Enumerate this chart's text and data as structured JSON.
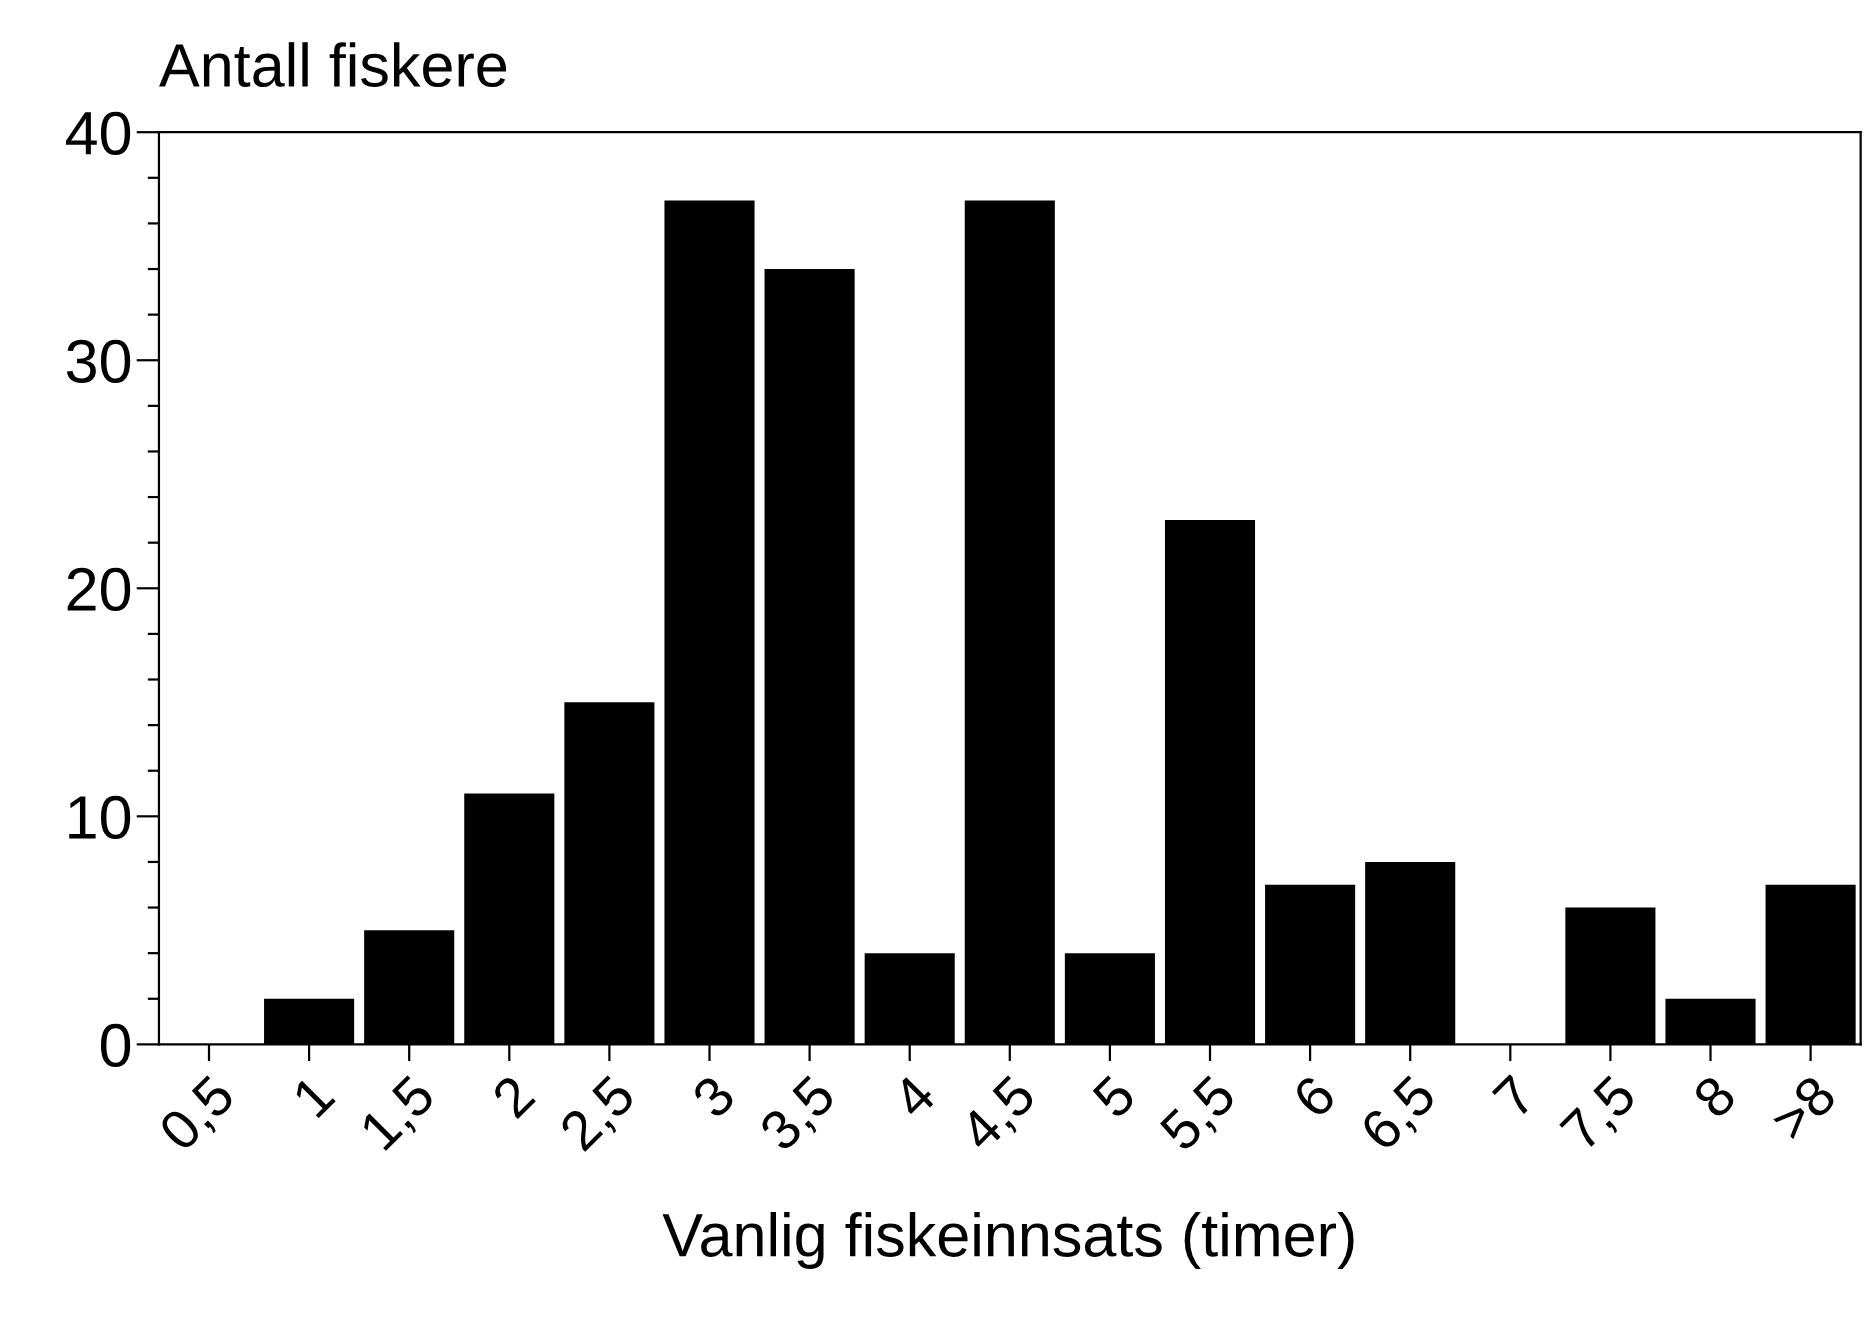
{
  "chart_data": {
    "type": "bar",
    "ylabel": "Antall fiskere",
    "xlabel": "Vanlig fiskeinnsats (timer)",
    "categories": [
      "0,5",
      "1",
      "1,5",
      "2",
      "2,5",
      "3",
      "3,5",
      "4",
      "4,5",
      "5",
      "5,5",
      "6",
      "6,5",
      "7",
      "7,5",
      "8",
      ">8"
    ],
    "values": [
      0,
      2,
      5,
      11,
      15,
      37,
      34,
      4,
      37,
      4,
      23,
      7,
      8,
      0,
      6,
      2,
      7
    ],
    "color": "#000000",
    "ylim": [
      0,
      40
    ],
    "yticks": [
      0,
      {
        "value": 2,
        "label": null
      },
      {
        "value": 4,
        "label": null
      },
      {
        "value": 6,
        "label": null
      },
      {
        "value": 8,
        "label": null
      },
      10,
      {
        "value": 12,
        "label": null
      },
      {
        "value": 14,
        "label": null
      },
      {
        "value": 16,
        "label": null
      },
      {
        "value": 18,
        "label": null
      },
      20,
      {
        "value": 22,
        "label": null
      },
      {
        "value": 24,
        "label": null
      },
      {
        "value": 26,
        "label": null
      },
      {
        "value": 28,
        "label": null
      },
      30,
      {
        "value": 32,
        "label": null
      },
      {
        "value": 34,
        "label": null
      },
      {
        "value": 36,
        "label": null
      },
      {
        "value": 38,
        "label": null
      },
      40
    ],
    "grid": false,
    "legend": false
  }
}
